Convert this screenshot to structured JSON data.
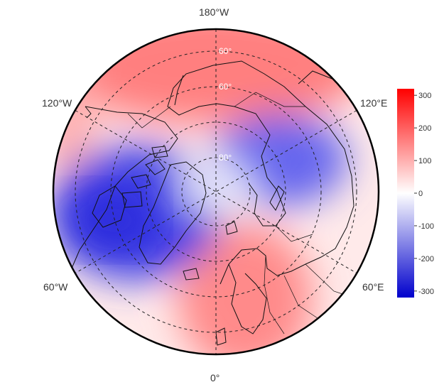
{
  "map": {
    "projection": "north polar stereographic",
    "coastlines": true,
    "country_borders": true,
    "longitude_labels": {
      "lon_180w": "180°W",
      "lon_120w": "120°W",
      "lon_120e": "120°E",
      "lon_60w": "60°W",
      "lon_60e": "60°E",
      "lon_0": "0°"
    },
    "latitude_labels": [
      "60°",
      "60°",
      "80°"
    ],
    "graticule_style": "dashed"
  },
  "field": {
    "description_values": "anomaly field shown as color shading",
    "min": -320,
    "max": 320,
    "positive_regions": [
      "North Pacific / Siberia",
      "Europe / North Atlantic",
      "western North America"
    ],
    "negative_regions": [
      "Canada / Greenland",
      "Central Siberia / Kara Sea"
    ]
  },
  "colorbar": {
    "ticks": [
      "300",
      "200",
      "100",
      "0",
      "-100",
      "-200",
      "-300"
    ],
    "tick_values": [
      300,
      200,
      100,
      0,
      -100,
      -200,
      -300
    ],
    "vmin": -320,
    "vmax": 320,
    "colors": {
      "high": "#ff0000",
      "mid": "#ffffff",
      "low": "#0000cc"
    }
  }
}
